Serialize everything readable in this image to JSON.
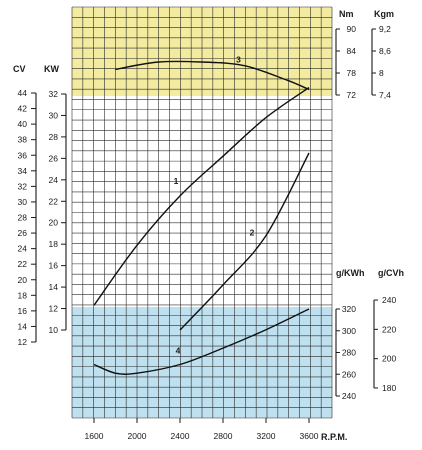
{
  "chart_data": {
    "type": "line",
    "xlabel": "R.P.M.",
    "x_ticks": [
      "1600",
      "2000",
      "2400",
      "2800",
      "3200",
      "3600"
    ],
    "xlim": [
      1200,
      3800
    ],
    "grid": true,
    "colors": {
      "grid": "#2b2b2b",
      "top_band": "#f3eba0",
      "bottom_band": "#bfe0ef",
      "curve": "#111111"
    },
    "axes": {
      "cv": {
        "label": "CV",
        "ticks": [
          "44",
          "42",
          "40",
          "38",
          "36",
          "34",
          "32",
          "30",
          "28",
          "26",
          "24",
          "22",
          "20",
          "18",
          "16",
          "14",
          "12"
        ],
        "range": [
          12,
          44
        ]
      },
      "kw": {
        "label": "KW",
        "ticks": [
          "32",
          "30",
          "28",
          "26",
          "24",
          "22",
          "20",
          "18",
          "16",
          "14",
          "12",
          "10"
        ],
        "range": [
          10,
          32
        ]
      },
      "nm": {
        "label": "Nm",
        "ticks": [
          "90",
          "84",
          "78",
          "72"
        ],
        "range": [
          72,
          90
        ]
      },
      "kgm": {
        "label": "Kgm",
        "ticks": [
          "9,2",
          "8,6",
          "8",
          "7,4"
        ],
        "range": [
          7.4,
          9.2
        ]
      },
      "gkwh": {
        "label": "g/KWh",
        "ticks": [
          "320",
          "300",
          "280",
          "260",
          "240"
        ],
        "range": [
          240,
          320
        ]
      },
      "gcvh": {
        "label": "g/CVh",
        "ticks": [
          "240",
          "220",
          "200",
          "180"
        ],
        "range": [
          180,
          240
        ]
      }
    },
    "series": [
      {
        "label": "1",
        "unit": "KW",
        "x": [
          1600,
          2000,
          2400,
          2800,
          3200,
          3600
        ],
        "y": [
          12.3,
          17.9,
          22.5,
          26.2,
          29.8,
          32.6
        ]
      },
      {
        "label": "2",
        "unit": "KW",
        "x": [
          2400,
          2800,
          3200,
          3600
        ],
        "y": [
          10.0,
          14.2,
          18.8,
          26.5
        ]
      },
      {
        "label": "3",
        "unit": "Nm",
        "x": [
          1800,
          2200,
          2600,
          3000,
          3400,
          3600
        ],
        "y": [
          79,
          81,
          81,
          80,
          76,
          73.5
        ]
      },
      {
        "label": "4",
        "unit": "g/KWh",
        "x": [
          1600,
          1800,
          2000,
          2400,
          2800,
          3200,
          3600
        ],
        "y": [
          269,
          261,
          261,
          269,
          284,
          301,
          320
        ]
      }
    ]
  }
}
